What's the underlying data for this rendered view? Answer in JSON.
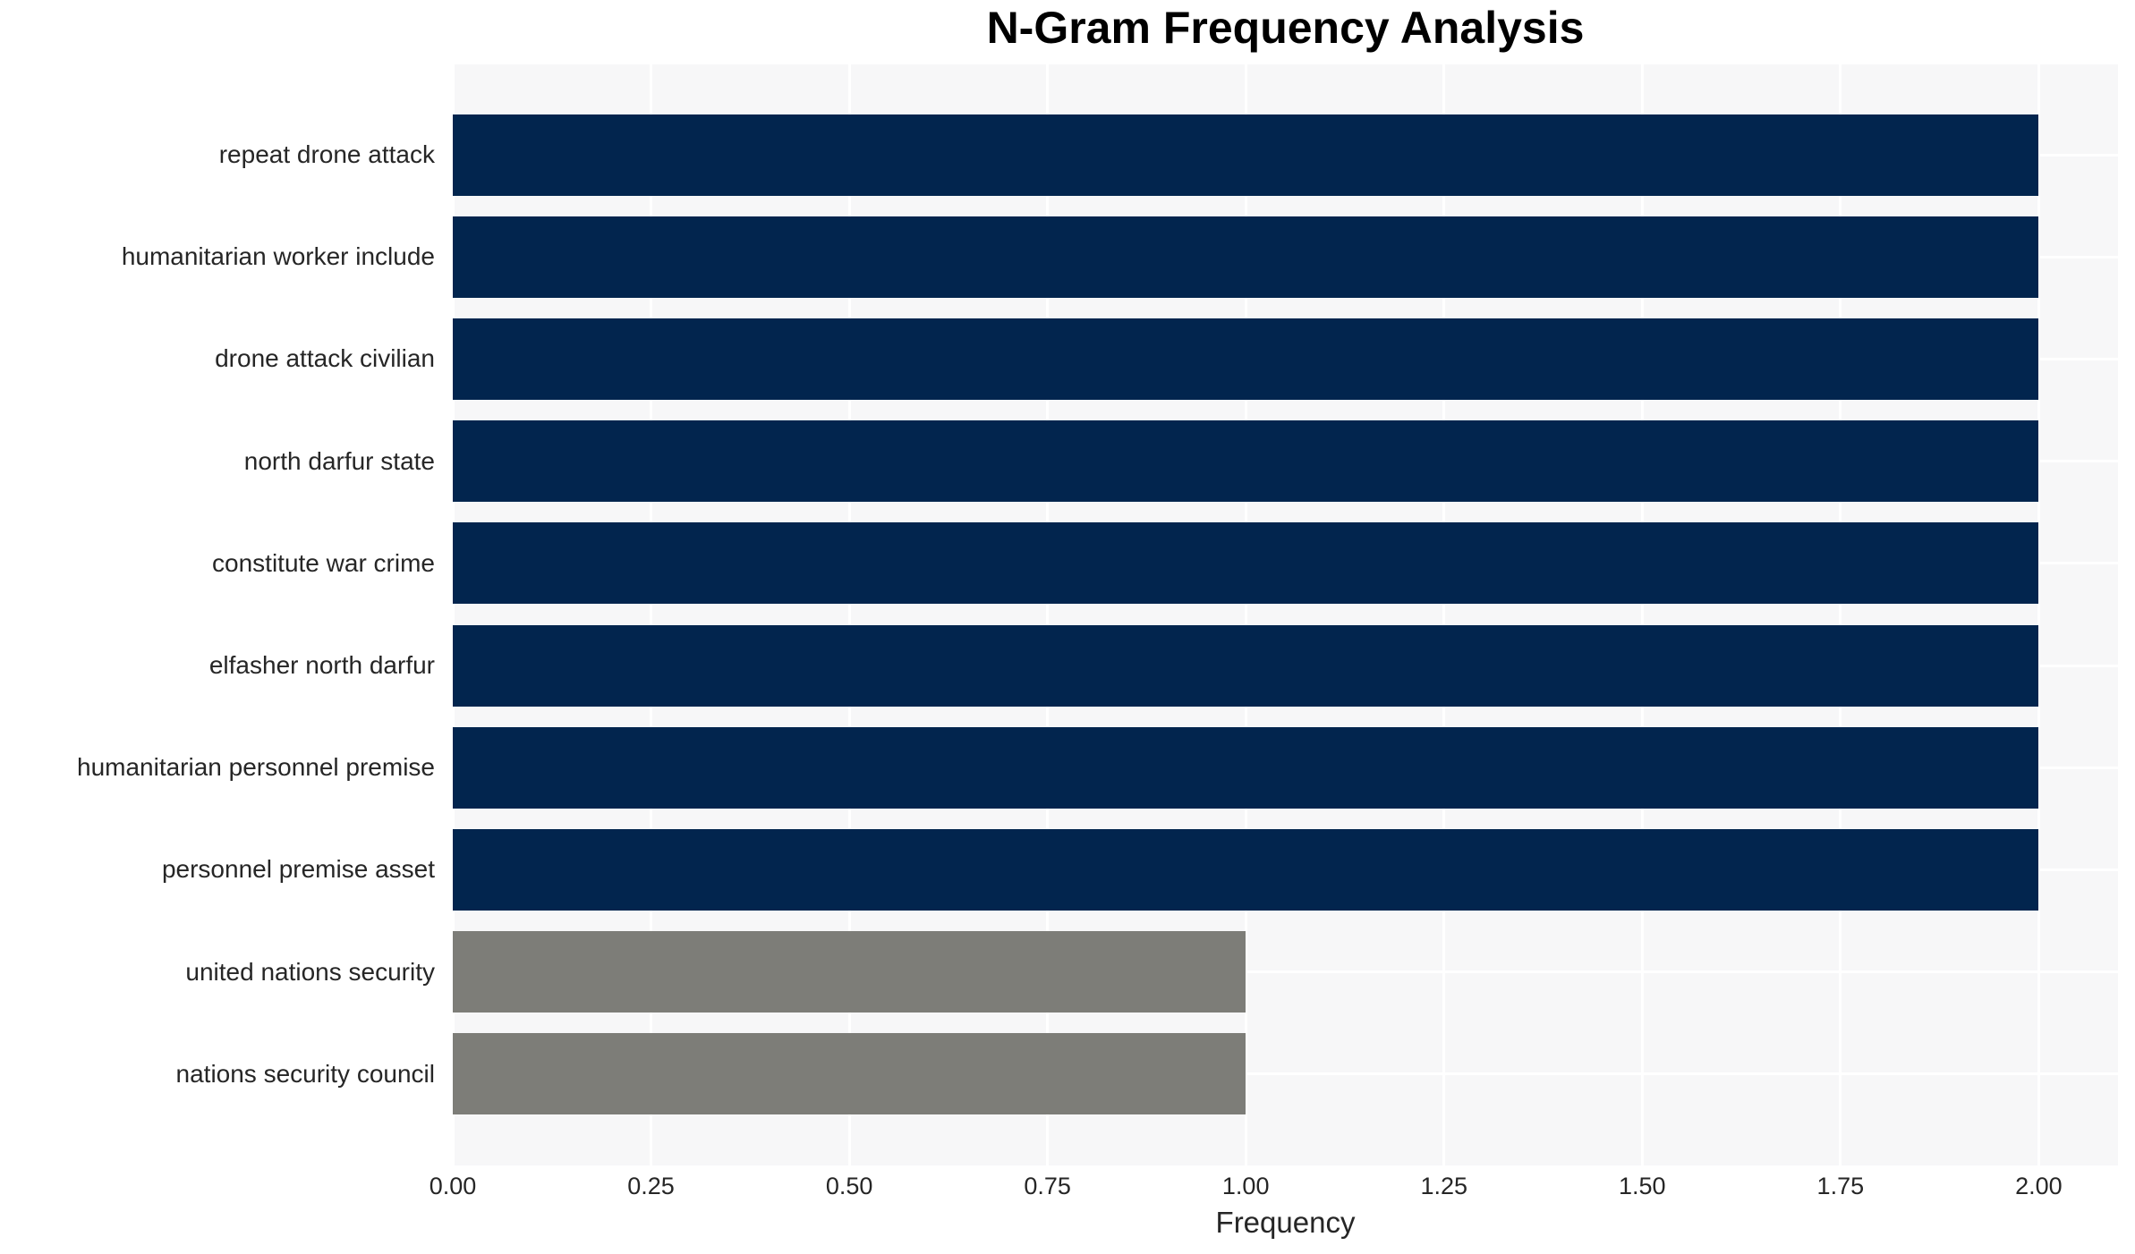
{
  "chart_data": {
    "type": "bar",
    "orientation": "horizontal",
    "title": "N-Gram Frequency Analysis",
    "xlabel": "Frequency",
    "ylabel": "",
    "categories": [
      "repeat drone attack",
      "humanitarian worker include",
      "drone attack civilian",
      "north darfur state",
      "constitute war crime",
      "elfasher north darfur",
      "humanitarian personnel premise",
      "personnel premise asset",
      "united nations security",
      "nations security council"
    ],
    "values": [
      2,
      2,
      2,
      2,
      2,
      2,
      2,
      2,
      1,
      1
    ],
    "bar_colors": [
      "#02254e",
      "#02254e",
      "#02254e",
      "#02254e",
      "#02254e",
      "#02254e",
      "#02254e",
      "#02254e",
      "#7d7d78",
      "#7d7d78"
    ],
    "xlim": [
      0,
      2.1
    ],
    "xticks": [
      {
        "value": 0.0,
        "label": "0.00"
      },
      {
        "value": 0.25,
        "label": "0.25"
      },
      {
        "value": 0.5,
        "label": "0.50"
      },
      {
        "value": 0.75,
        "label": "0.75"
      },
      {
        "value": 1.0,
        "label": "1.00"
      },
      {
        "value": 1.25,
        "label": "1.25"
      },
      {
        "value": 1.5,
        "label": "1.50"
      },
      {
        "value": 1.75,
        "label": "1.75"
      },
      {
        "value": 2.0,
        "label": "2.00"
      }
    ],
    "grid": true,
    "legend": null,
    "style": {
      "plot_background": "#f7f7f8",
      "grid_color": "#ffffff",
      "text_color": "#262626",
      "title_color": "#000000",
      "page_background": "#ffffff"
    }
  }
}
